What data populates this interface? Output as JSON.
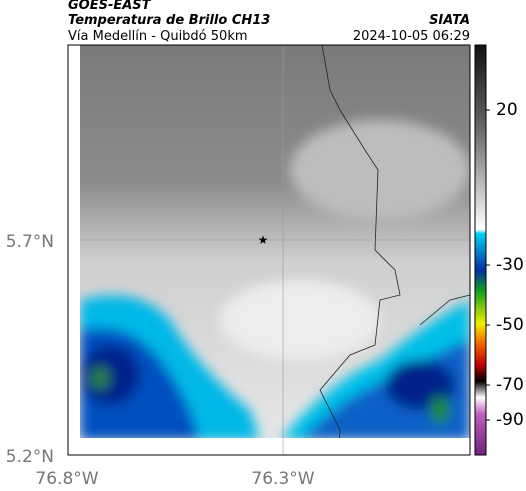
{
  "header": {
    "title": "GOES-EAST",
    "subtitle": "Temperatura de Brillo CH13",
    "source": "SIATA",
    "route": "Vía Medellín - Quibdó 50km",
    "datetime": "2024-10-05 06:29"
  },
  "axes": {
    "lat_labels": [
      "5.7°N",
      "5.2°N"
    ],
    "lon_labels": [
      "76.8°W",
      "76.3°W"
    ]
  },
  "colorbar": {
    "labels": [
      "20",
      "-30",
      "-50",
      "-70",
      "-90"
    ]
  }
}
